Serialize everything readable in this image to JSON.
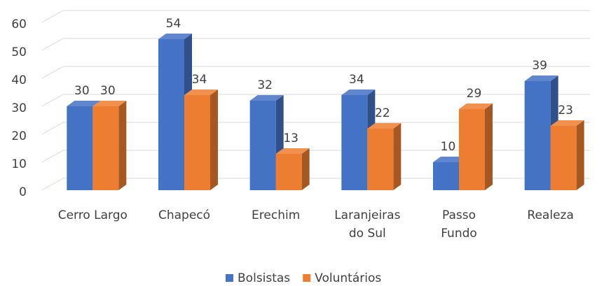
{
  "chart_data": {
    "type": "bar3d",
    "categories": [
      "Cerro Largo",
      "Chapecó",
      "Erechim",
      "Laranjeiras do Sul",
      "Passo Fundo",
      "Realeza"
    ],
    "series": [
      {
        "name": "Bolsistas",
        "color": "#4472c4",
        "values": [
          30,
          54,
          32,
          34,
          10,
          39
        ]
      },
      {
        "name": "Voluntários",
        "color": "#ed7d31",
        "values": [
          30,
          34,
          13,
          22,
          29,
          23
        ]
      }
    ],
    "ylim": [
      0,
      60
    ],
    "yticks": [
      0,
      10,
      20,
      30,
      40,
      50,
      60
    ],
    "grid": true,
    "legend": "bottom"
  }
}
